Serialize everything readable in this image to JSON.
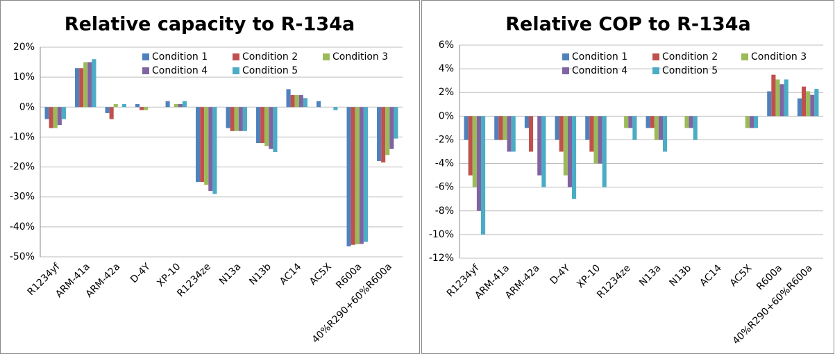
{
  "chart_data": [
    {
      "type": "bar",
      "title": "Relative capacity to R-134a",
      "categories": [
        "R1234yf",
        "ARM-41a",
        "ARM-42a",
        "D-4Y",
        "XP-10",
        "R1234ze",
        "N13a",
        "N13b",
        "AC14",
        "AC5X",
        "R600a",
        "40%R290+60%R600a"
      ],
      "series": [
        {
          "name": "Condition 1",
          "color": "#4f81bd",
          "values": [
            -4,
            13,
            -2,
            1,
            2,
            -25,
            -7,
            -12,
            6,
            2,
            -46.5,
            -18
          ]
        },
        {
          "name": "Condition 2",
          "color": "#c0504d",
          "values": [
            -7,
            13,
            -4,
            -1,
            0,
            -25,
            -8,
            -12,
            4,
            0,
            -46,
            -18.5
          ]
        },
        {
          "name": "Condition 3",
          "color": "#9bbb59",
          "values": [
            -7,
            15,
            1,
            -1,
            1,
            -26,
            -8,
            -13,
            4,
            0,
            -45.8,
            -16
          ]
        },
        {
          "name": "Condition 4",
          "color": "#8064a2",
          "values": [
            -6,
            15,
            0,
            0,
            1,
            -28,
            -8,
            -14,
            4,
            0,
            -45.7,
            -14
          ]
        },
        {
          "name": "Condition 5",
          "color": "#4bacc6",
          "values": [
            -4,
            16,
            1,
            0,
            2,
            -29,
            -8,
            -15,
            3,
            -1,
            -45,
            -10.5
          ]
        }
      ],
      "ylim": [
        -50,
        20
      ],
      "yticks": [
        {
          "value": -50,
          "label": "-50%"
        },
        {
          "value": -40,
          "label": "-40%"
        },
        {
          "value": -30,
          "label": "-30%"
        },
        {
          "value": -20,
          "label": "-20%"
        },
        {
          "value": -10,
          "label": "-10%"
        },
        {
          "value": 0,
          "label": "0%"
        },
        {
          "value": 10,
          "label": "10%"
        },
        {
          "value": 20,
          "label": "20%"
        }
      ],
      "grid": true,
      "legend": "top"
    },
    {
      "type": "bar",
      "title": "Relative COP to R-134a",
      "categories": [
        "R1234yf",
        "ARM-41a",
        "ARM-42a",
        "D-4Y",
        "XP-10",
        "R1234ze",
        "N13a",
        "N13b",
        "AC14",
        "AC5X",
        "R600a",
        "40%R290+60%R600a"
      ],
      "series": [
        {
          "name": "Condition 1",
          "color": "#4f81bd",
          "values": [
            -2,
            -2,
            -1,
            -2,
            -2,
            0,
            -1,
            0,
            0,
            0,
            2.1,
            1.5
          ]
        },
        {
          "name": "Condition 2",
          "color": "#c0504d",
          "values": [
            -5,
            -2,
            -3,
            -3,
            -3,
            0,
            -1,
            0,
            0,
            0,
            3.5,
            2.5
          ]
        },
        {
          "name": "Condition 3",
          "color": "#9bbb59",
          "values": [
            -6,
            -2,
            0,
            -5,
            -4,
            -1,
            -2,
            -1,
            0,
            -1,
            3.1,
            2.1
          ]
        },
        {
          "name": "Condition 4",
          "color": "#8064a2",
          "values": [
            -8,
            -3,
            -5,
            -6,
            -4,
            -1,
            -2,
            -1,
            0,
            -1,
            2.7,
            1.8
          ]
        },
        {
          "name": "Condition 5",
          "color": "#4bacc6",
          "values": [
            -10,
            -3,
            -6,
            -7,
            -6,
            -2,
            -3,
            -2,
            0,
            -1,
            3.1,
            2.3
          ]
        }
      ],
      "ylim": [
        -12,
        6
      ],
      "yticks": [
        {
          "value": -12,
          "label": "-12%"
        },
        {
          "value": -10,
          "label": "-10%"
        },
        {
          "value": -8,
          "label": "-8%"
        },
        {
          "value": -6,
          "label": "-6%"
        },
        {
          "value": -4,
          "label": "-4%"
        },
        {
          "value": -2,
          "label": "-2%"
        },
        {
          "value": 0,
          "label": "0%"
        },
        {
          "value": 2,
          "label": "2%"
        },
        {
          "value": 4,
          "label": "4%"
        },
        {
          "value": 6,
          "label": "6%"
        }
      ],
      "grid": true,
      "legend": "top"
    }
  ]
}
